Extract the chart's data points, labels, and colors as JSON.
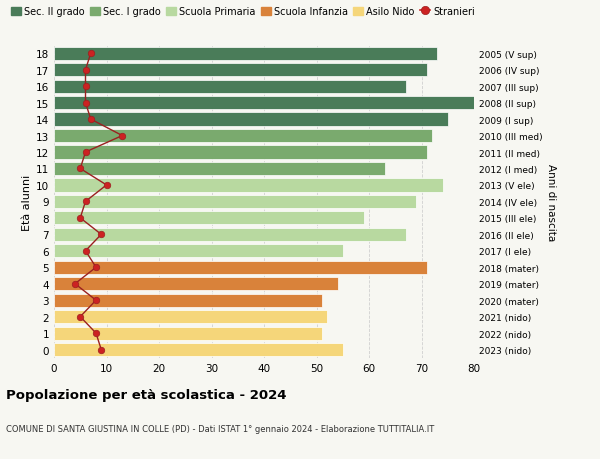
{
  "ages": [
    18,
    17,
    16,
    15,
    14,
    13,
    12,
    11,
    10,
    9,
    8,
    7,
    6,
    5,
    4,
    3,
    2,
    1,
    0
  ],
  "years": [
    "2005 (V sup)",
    "2006 (IV sup)",
    "2007 (III sup)",
    "2008 (II sup)",
    "2009 (I sup)",
    "2010 (III med)",
    "2011 (II med)",
    "2012 (I med)",
    "2013 (V ele)",
    "2014 (IV ele)",
    "2015 (III ele)",
    "2016 (II ele)",
    "2017 (I ele)",
    "2018 (mater)",
    "2019 (mater)",
    "2020 (mater)",
    "2021 (nido)",
    "2022 (nido)",
    "2023 (nido)"
  ],
  "bar_values": [
    73,
    71,
    67,
    80,
    75,
    72,
    71,
    63,
    74,
    69,
    59,
    67,
    55,
    71,
    54,
    51,
    52,
    51,
    55
  ],
  "bar_colors": [
    "#4a7c59",
    "#4a7c59",
    "#4a7c59",
    "#4a7c59",
    "#4a7c59",
    "#7aaa6e",
    "#7aaa6e",
    "#7aaa6e",
    "#b8d9a0",
    "#b8d9a0",
    "#b8d9a0",
    "#b8d9a0",
    "#b8d9a0",
    "#d9823a",
    "#d9823a",
    "#d9823a",
    "#f5d67a",
    "#f5d67a",
    "#f5d67a"
  ],
  "stranieri_values": [
    7,
    6,
    6,
    6,
    7,
    13,
    6,
    5,
    10,
    6,
    5,
    9,
    6,
    8,
    4,
    8,
    5,
    8,
    9
  ],
  "legend_labels": [
    "Sec. II grado",
    "Sec. I grado",
    "Scuola Primaria",
    "Scuola Infanzia",
    "Asilo Nido",
    "Stranieri"
  ],
  "legend_colors": [
    "#4a7c59",
    "#7aaa6e",
    "#b8d9a0",
    "#d9823a",
    "#f5d67a",
    "#cc2222"
  ],
  "ylabel": "Età alunni",
  "ylabel_right": "Anni di nascita",
  "title": "Popolazione per età scolastica - 2024",
  "subtitle": "COMUNE DI SANTA GIUSTINA IN COLLE (PD) - Dati ISTAT 1° gennaio 2024 - Elaborazione TUTTITALIA.IT",
  "xlim": [
    0,
    80
  ],
  "bg_color": "#f7f7f2",
  "xticks": [
    0,
    10,
    20,
    30,
    40,
    50,
    60,
    70,
    80
  ]
}
